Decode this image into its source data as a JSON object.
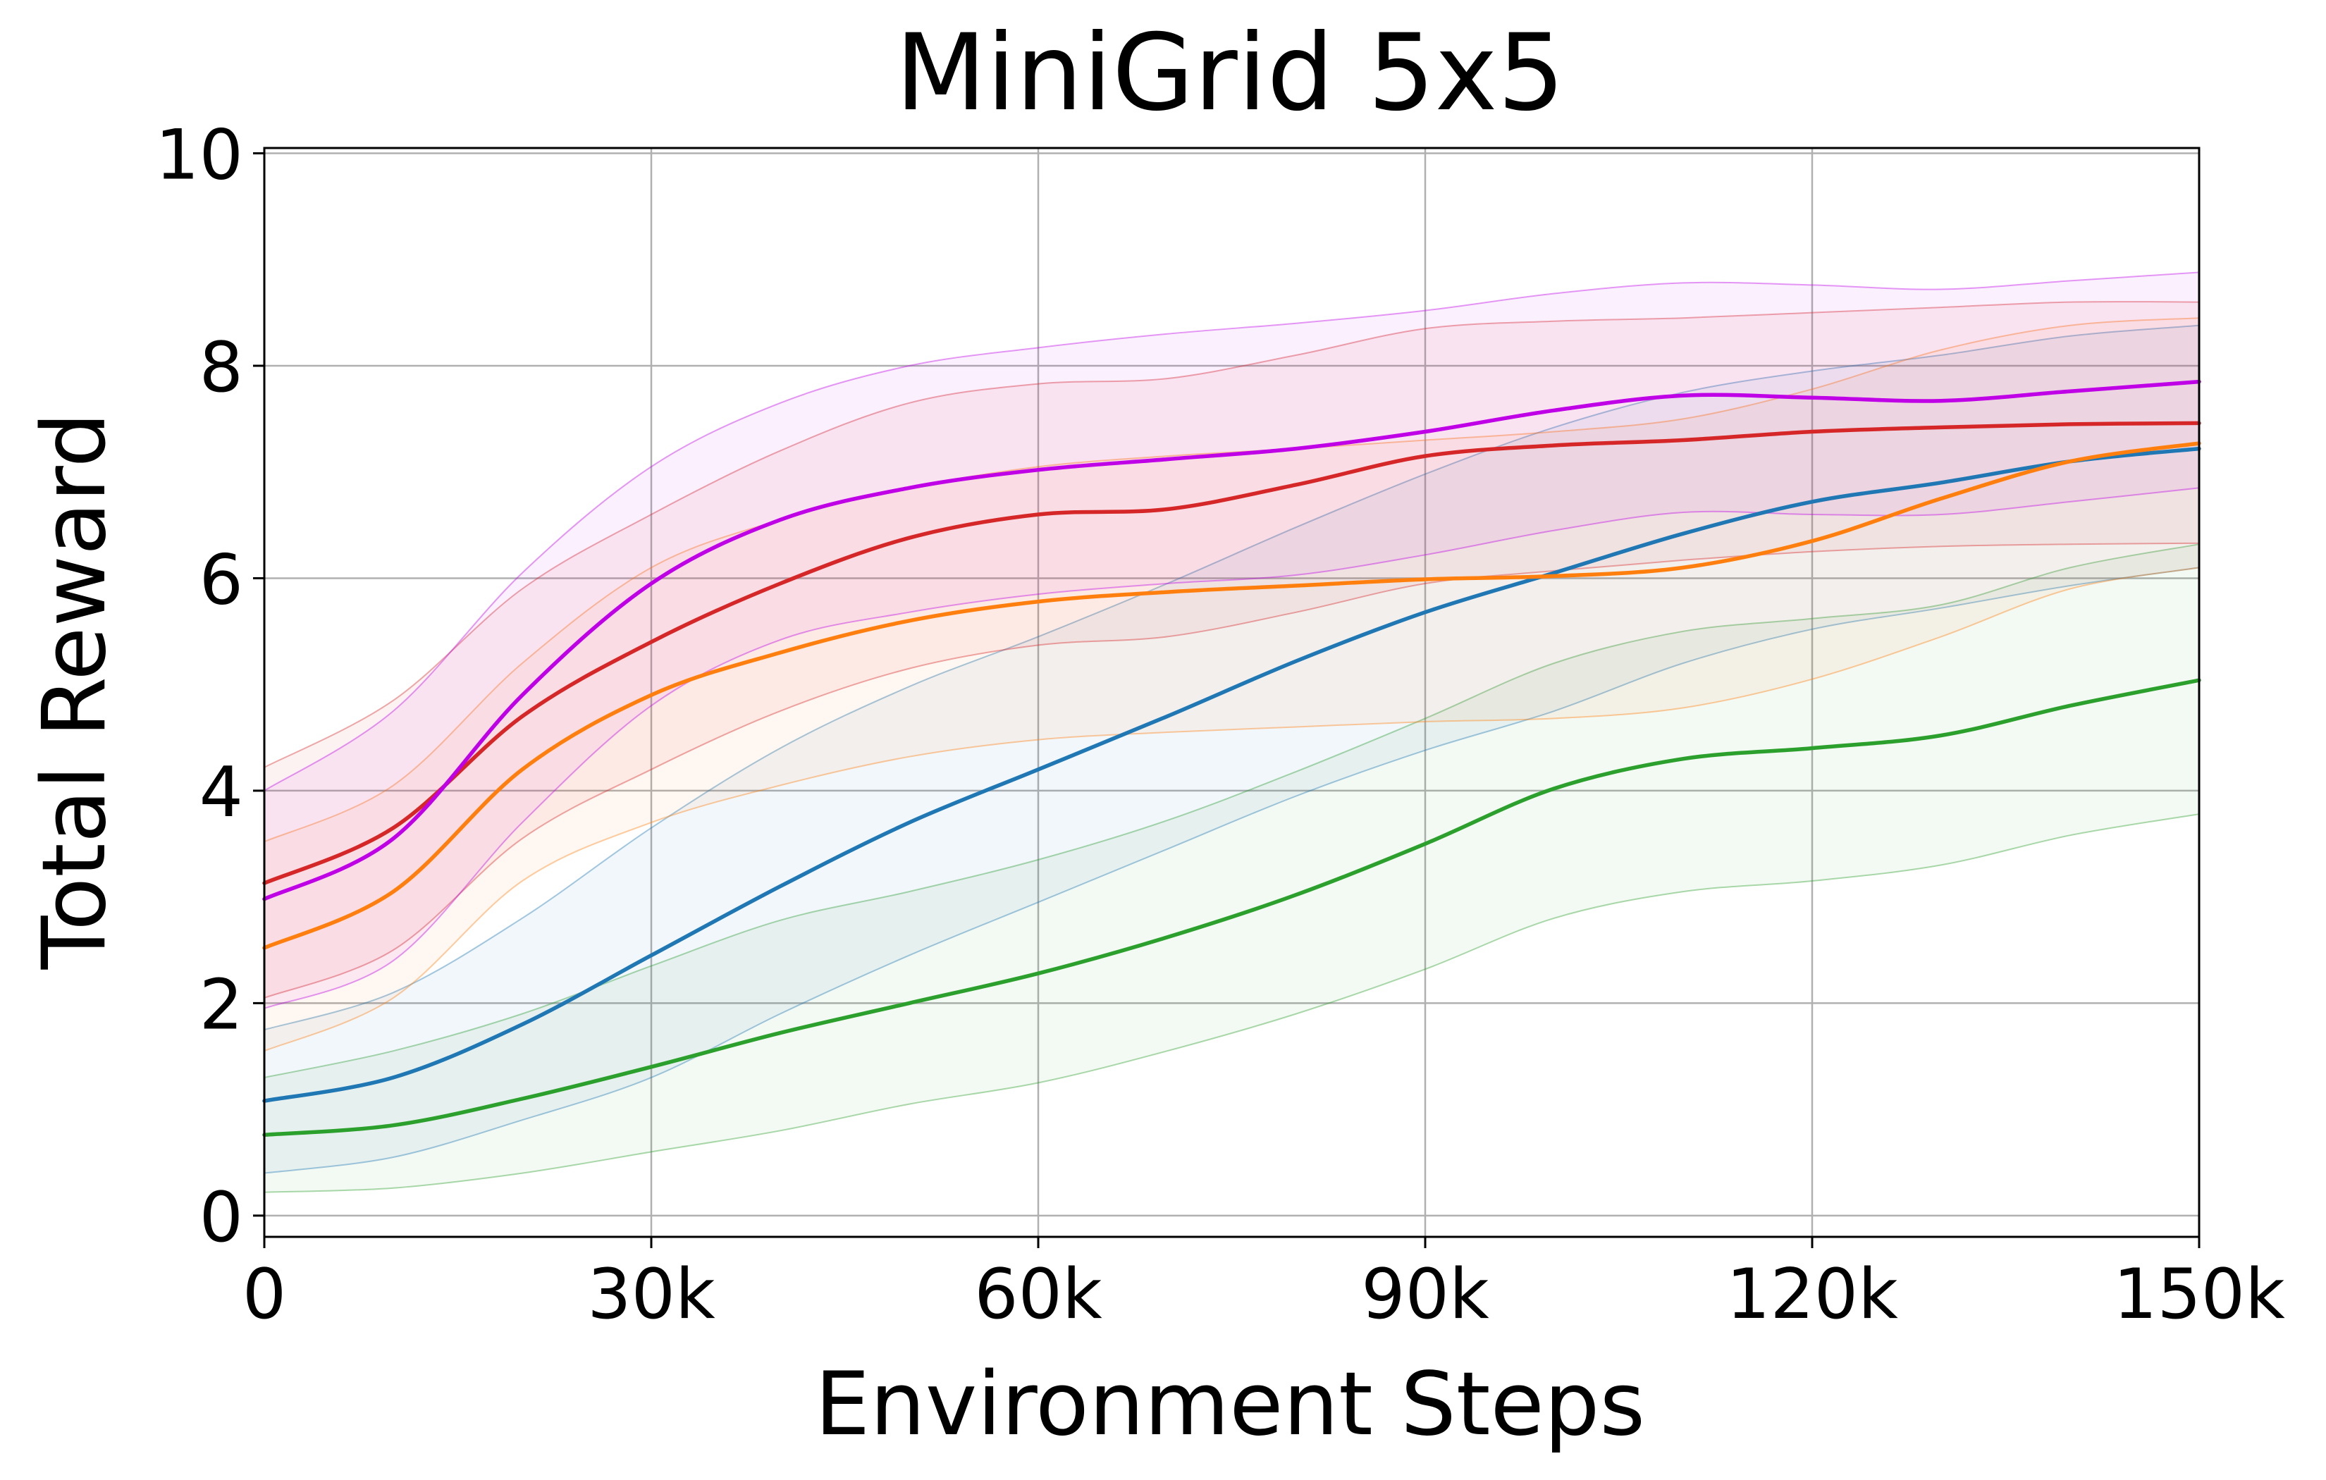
{
  "chart_data": {
    "type": "line",
    "title": "MiniGrid 5x5",
    "xlabel": "Environment Steps",
    "ylabel": "Total Reward",
    "xlim": [
      0,
      150000
    ],
    "ylim": [
      -0.2,
      10.05
    ],
    "xticks": [
      0,
      30000,
      60000,
      90000,
      120000,
      150000
    ],
    "xtick_labels": [
      "0",
      "30k",
      "60k",
      "90k",
      "120k",
      "150k"
    ],
    "yticks": [
      0,
      2,
      4,
      6,
      8,
      10
    ],
    "ytick_labels": [
      "0",
      "2",
      "4",
      "6",
      "8",
      "10"
    ],
    "grid": true,
    "legend": false,
    "x": [
      0,
      10000,
      20000,
      30000,
      40000,
      50000,
      60000,
      70000,
      80000,
      90000,
      100000,
      110000,
      120000,
      130000,
      140000,
      150000
    ],
    "series": [
      {
        "color": "#bf00e6",
        "values": [
          2.98,
          3.55,
          4.9,
          5.95,
          6.55,
          6.85,
          7.02,
          7.12,
          7.22,
          7.38,
          7.58,
          7.72,
          7.7,
          7.67,
          7.76,
          7.85
        ],
        "upper": [
          4.0,
          4.75,
          6.05,
          7.05,
          7.65,
          8.0,
          8.17,
          8.3,
          8.4,
          8.52,
          8.68,
          8.78,
          8.76,
          8.72,
          8.8,
          8.88
        ],
        "lower": [
          1.95,
          2.4,
          3.7,
          4.8,
          5.42,
          5.68,
          5.85,
          5.95,
          6.03,
          6.22,
          6.45,
          6.62,
          6.6,
          6.6,
          6.72,
          6.85
        ]
      },
      {
        "color": "#d62728",
        "values": [
          3.13,
          3.65,
          4.7,
          5.4,
          5.95,
          6.38,
          6.6,
          6.65,
          6.88,
          7.15,
          7.25,
          7.3,
          7.38,
          7.42,
          7.45,
          7.46
        ],
        "upper": [
          4.22,
          4.85,
          5.9,
          6.6,
          7.2,
          7.65,
          7.83,
          7.88,
          8.1,
          8.35,
          8.42,
          8.45,
          8.5,
          8.55,
          8.6,
          8.6
        ],
        "lower": [
          2.05,
          2.5,
          3.55,
          4.2,
          4.75,
          5.15,
          5.37,
          5.45,
          5.68,
          5.95,
          6.07,
          6.17,
          6.25,
          6.3,
          6.32,
          6.33
        ]
      },
      {
        "color": "#ff7f0e",
        "values": [
          2.52,
          3.05,
          4.2,
          4.9,
          5.3,
          5.6,
          5.78,
          5.87,
          5.93,
          5.99,
          6.02,
          6.1,
          6.35,
          6.75,
          7.1,
          7.27
        ],
        "upper": [
          3.52,
          4.05,
          5.2,
          6.1,
          6.55,
          6.85,
          7.05,
          7.15,
          7.22,
          7.3,
          7.38,
          7.5,
          7.78,
          8.15,
          8.38,
          8.45
        ],
        "lower": [
          1.55,
          2.05,
          3.15,
          3.7,
          4.05,
          4.32,
          4.48,
          4.55,
          4.6,
          4.65,
          4.68,
          4.78,
          5.05,
          5.45,
          5.9,
          6.1
        ]
      },
      {
        "color": "#1f77b4",
        "values": [
          1.08,
          1.3,
          1.8,
          2.45,
          3.1,
          3.7,
          4.2,
          4.7,
          5.22,
          5.68,
          6.05,
          6.42,
          6.72,
          6.9,
          7.1,
          7.22
        ],
        "upper": [
          1.75,
          2.1,
          2.8,
          3.65,
          4.4,
          4.98,
          5.45,
          5.95,
          6.48,
          6.98,
          7.42,
          7.75,
          7.95,
          8.1,
          8.28,
          8.38
        ],
        "lower": [
          0.4,
          0.55,
          0.9,
          1.3,
          1.9,
          2.45,
          2.95,
          3.45,
          3.95,
          4.38,
          4.75,
          5.2,
          5.52,
          5.72,
          5.93,
          6.1
        ]
      },
      {
        "color": "#2ca02c",
        "values": [
          0.76,
          0.85,
          1.1,
          1.4,
          1.72,
          2.0,
          2.28,
          2.62,
          3.02,
          3.5,
          4.02,
          4.3,
          4.4,
          4.52,
          4.8,
          5.04
        ],
        "upper": [
          1.3,
          1.55,
          1.9,
          2.35,
          2.78,
          3.05,
          3.35,
          3.72,
          4.18,
          4.68,
          5.2,
          5.5,
          5.62,
          5.75,
          6.1,
          6.32
        ],
        "lower": [
          0.22,
          0.26,
          0.4,
          0.6,
          0.8,
          1.05,
          1.25,
          1.55,
          1.9,
          2.32,
          2.8,
          3.05,
          3.15,
          3.3,
          3.58,
          3.78
        ]
      }
    ]
  }
}
